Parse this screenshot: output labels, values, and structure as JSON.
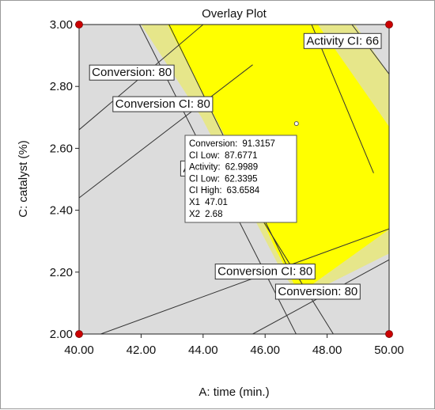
{
  "chart_data": {
    "type": "overlay-contour",
    "title": "Overlay Plot",
    "xlabel": "A: time (min.)",
    "ylabel": "C: catalyst (%)",
    "xlim": [
      40.0,
      50.0
    ],
    "ylim": [
      2.0,
      3.0
    ],
    "x_ticks": [
      "40.00",
      "42.00",
      "44.00",
      "46.00",
      "48.00",
      "50.00"
    ],
    "y_ticks": [
      "2.00",
      "2.20",
      "2.40",
      "2.60",
      "2.80",
      "3.00"
    ],
    "colors": {
      "background_region": "#dcdcdc",
      "sweet_spot": "#ffff00",
      "ci_band": "#e6e68a",
      "contour_line": "#333333",
      "design_point": "#cc0000"
    },
    "design_points": [
      {
        "x": 40.0,
        "y": 3.0
      },
      {
        "x": 50.0,
        "y": 3.0
      },
      {
        "x": 40.0,
        "y": 2.0
      },
      {
        "x": 50.0,
        "y": 2.0
      }
    ],
    "bands": [
      {
        "name": "Conversion CI: 80 / Conversion: 80 (upper)",
        "polygon": [
          [
            42.0,
            3.0
          ],
          [
            42.85,
            3.0
          ],
          [
            44.7,
            2.64
          ],
          [
            46.3,
            2.28
          ],
          [
            47.1,
            2.13
          ],
          [
            46.6,
            2.19
          ],
          [
            45.3,
            2.44
          ],
          [
            43.95,
            2.7
          ]
        ]
      },
      {
        "name": "Conversion CI: 80 / Conversion: 80 (lower)",
        "polygon": [
          [
            50.0,
            2.338
          ],
          [
            50.0,
            2.26
          ],
          [
            47.4,
            2.13
          ],
          [
            47.1,
            2.13
          ]
        ]
      },
      {
        "name": "Activity CI: 66 (right)",
        "polygon": [
          [
            48.9,
            3.0
          ],
          [
            50.0,
            2.84
          ],
          [
            50.0,
            2.67
          ],
          [
            47.7,
            3.0
          ]
        ]
      }
    ],
    "contour_lines": [
      {
        "x": [
          41.95,
          47.0
        ],
        "y": [
          3.0,
          2.0
        ]
      },
      {
        "x": [
          42.9,
          46.9
        ],
        "y": [
          3.0,
          2.18
        ]
      },
      {
        "x": [
          40.0,
          44.0
        ],
        "y": [
          2.66,
          3.0
        ]
      },
      {
        "x": [
          40.0,
          45.6
        ],
        "y": [
          2.44,
          2.87
        ]
      },
      {
        "x": [
          40.7,
          50.0
        ],
        "y": [
          2.0,
          2.34
        ]
      },
      {
        "x": [
          45.6,
          50.0
        ],
        "y": [
          2.0,
          2.24
        ]
      },
      {
        "x": [
          47.5,
          49.5
        ],
        "y": [
          3.0,
          2.52
        ]
      },
      {
        "x": [
          48.8,
          50.0
        ],
        "y": [
          3.0,
          2.84
        ]
      },
      {
        "x": [
          44.6,
          48.2
        ],
        "y": [
          2.58,
          2.0
        ]
      }
    ],
    "contour_labels": [
      {
        "text": "Conversion: 80",
        "x": 41.7,
        "y": 2.846
      },
      {
        "text": "Conversion CI: 80",
        "x": 42.7,
        "y": 2.744
      },
      {
        "text": "Activity CI: 66",
        "x": 48.5,
        "y": 2.948
      },
      {
        "text": "Conversion CI: 80",
        "x": 46.0,
        "y": 2.203
      },
      {
        "text": "Conversion: 80",
        "x": 47.7,
        "y": 2.138
      },
      {
        "text": "A",
        "x": 43.48,
        "y": 2.536
      }
    ],
    "flag": {
      "x": 47.01,
      "y": 2.68,
      "lines": [
        {
          "label": "Conversion:",
          "value": "91.3157"
        },
        {
          "label": "  CI Low:",
          "value": "87.6771"
        },
        {
          "label": "Activity:",
          "value": "62.9989"
        },
        {
          "label": "  CI Low:",
          "value": "62.3395"
        },
        {
          "label": "  CI High:",
          "value": "63.6584"
        },
        {
          "label": "X1",
          "value": "47.01"
        },
        {
          "label": "X2",
          "value": "2.68"
        }
      ]
    }
  }
}
